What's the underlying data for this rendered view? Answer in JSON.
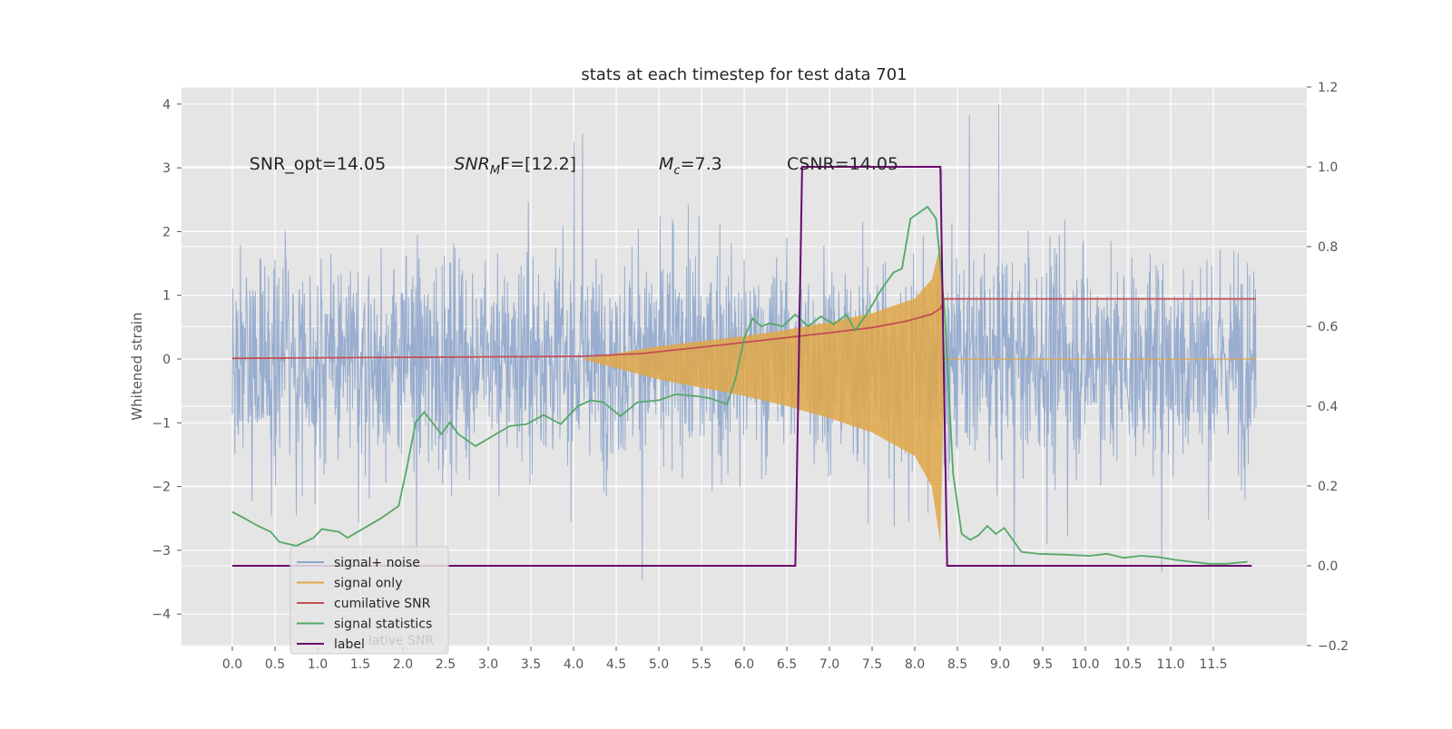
{
  "chart_data": {
    "type": "line",
    "title": "stats at each timestep for test data 701",
    "ylabel": "Whitened strain",
    "xlim": [
      -0.6,
      12.35
    ],
    "ylim": [
      -4.5,
      4.25
    ],
    "y2lim": [
      -0.2,
      1.2
    ],
    "grid": true,
    "legend_position": "lower-left",
    "x_ticks": [
      "0.0",
      "0.5",
      "1.0",
      "1.5",
      "2.0",
      "2.5",
      "3.0",
      "3.5",
      "4.0",
      "4.5",
      "5.0",
      "5.5",
      "6.0",
      "6.5",
      "7.0",
      "7.5",
      "8.0",
      "8.5",
      "9.0",
      "9.5",
      "10.0",
      "10.5",
      "11.0",
      "11.5"
    ],
    "y_ticks": [
      "4",
      "3",
      "2",
      "1",
      "0",
      "−1",
      "−2",
      "−3",
      "−4"
    ],
    "y2_ticks": [
      "1.2",
      "1.0",
      "0.8",
      "0.6",
      "0.4",
      "0.2",
      "0.0",
      "−0.2"
    ],
    "annotations": [
      {
        "id": "snr_opt",
        "text": "SNR_opt=14.05",
        "x": 0.2,
        "y": 3.0
      },
      {
        "id": "snr_mf",
        "text": "SNR",
        "sub": "M",
        "tail": "F=[12.2]",
        "x": 2.6,
        "y": 3.0
      },
      {
        "id": "mc",
        "text": "M",
        "sub": "c",
        "tail": "=7.3",
        "x": 5.0,
        "y": 3.0
      },
      {
        "id": "csnr",
        "text": "CSNR=14.05",
        "x": 6.5,
        "y": 3.0
      }
    ],
    "series": [
      {
        "name": "signal+ noise",
        "color": "#8fa6cc",
        "x_range": [
          0.0,
          12.0
        ],
        "amplitude_range": [
          -3.6,
          4.0
        ],
        "note_axis": "left"
      },
      {
        "name": "signal only",
        "color": "#e0a748",
        "axis": "left",
        "chirp_envelope": {
          "x": [
            4.1,
            5.0,
            6.0,
            6.5,
            7.0,
            7.5,
            8.0,
            8.2,
            8.3,
            8.35
          ],
          "amp": [
            0.0,
            0.2,
            0.36,
            0.46,
            0.58,
            0.72,
            0.95,
            1.25,
            1.8,
            0.0
          ]
        }
      },
      {
        "name": "cumilative SNR",
        "color": "#c44e52",
        "axis": "right",
        "x": [
          0.0,
          4.1,
          4.8,
          5.5,
          6.0,
          6.5,
          7.0,
          7.5,
          7.9,
          8.2,
          8.3,
          8.35,
          12.0
        ],
        "y": [
          0.52,
          0.525,
          0.532,
          0.548,
          0.56,
          0.572,
          0.584,
          0.597,
          0.613,
          0.631,
          0.645,
          0.669,
          0.669
        ]
      },
      {
        "name": "signal statistics",
        "color": "#55a868",
        "axis": "right",
        "x": [
          0.0,
          0.15,
          0.3,
          0.45,
          0.55,
          0.75,
          0.95,
          1.05,
          1.25,
          1.35,
          1.55,
          1.75,
          1.95,
          2.05,
          2.15,
          2.25,
          2.45,
          2.55,
          2.65,
          2.85,
          3.05,
          3.25,
          3.45,
          3.65,
          3.85,
          4.05,
          4.2,
          4.35,
          4.55,
          4.75,
          5.0,
          5.2,
          5.45,
          5.6,
          5.8,
          5.9,
          6.0,
          6.1,
          6.2,
          6.3,
          6.45,
          6.6,
          6.75,
          6.9,
          7.05,
          7.2,
          7.3,
          7.45,
          7.6,
          7.75,
          7.85,
          7.95,
          8.05,
          8.15,
          8.25,
          8.35,
          8.45,
          8.55,
          8.65,
          8.75,
          8.85,
          8.95,
          9.05,
          9.25,
          9.45,
          9.75,
          10.05,
          10.25,
          10.45,
          10.65,
          10.85,
          11.05,
          11.25,
          11.45,
          11.65,
          11.9
        ],
        "y": [
          0.135,
          0.118,
          0.1,
          0.085,
          0.06,
          0.05,
          0.07,
          0.092,
          0.085,
          0.07,
          0.095,
          0.12,
          0.15,
          0.25,
          0.36,
          0.385,
          0.33,
          0.36,
          0.33,
          0.3,
          0.325,
          0.35,
          0.355,
          0.378,
          0.355,
          0.4,
          0.415,
          0.41,
          0.375,
          0.41,
          0.415,
          0.43,
          0.425,
          0.42,
          0.405,
          0.47,
          0.57,
          0.62,
          0.6,
          0.608,
          0.6,
          0.63,
          0.6,
          0.625,
          0.605,
          0.63,
          0.59,
          0.635,
          0.69,
          0.735,
          0.745,
          0.87,
          0.885,
          0.9,
          0.87,
          0.64,
          0.23,
          0.08,
          0.065,
          0.077,
          0.1,
          0.08,
          0.095,
          0.035,
          0.03,
          0.028,
          0.025,
          0.03,
          0.02,
          0.025,
          0.022,
          0.015,
          0.01,
          0.005,
          0.005,
          0.01
        ]
      },
      {
        "name": "label",
        "color": "#6a0a6e",
        "axis": "right",
        "x": [
          0.0,
          6.6,
          6.68,
          8.3,
          8.38,
          11.95
        ],
        "y": [
          0.0,
          0.0,
          1.0,
          1.0,
          0.0,
          0.0
        ]
      }
    ]
  },
  "legend": {
    "items": [
      {
        "label": "signal+ noise",
        "color": "#8fa6cc"
      },
      {
        "label": "signal only",
        "color": "#e0a748"
      },
      {
        "label": "cumilative SNR",
        "color": "#c44e52"
      },
      {
        "label": "signal statistics",
        "color": "#55a868"
      },
      {
        "label": "label",
        "color": "#6a0a6e"
      }
    ],
    "ghost_text": "lative SNR"
  }
}
